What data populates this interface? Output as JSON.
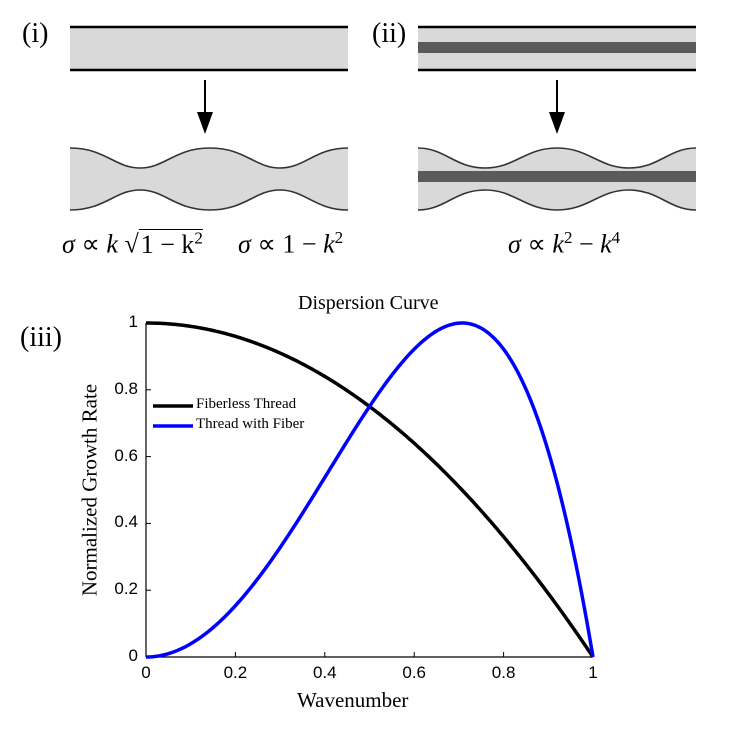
{
  "panels": {
    "i": {
      "label": "(i)"
    },
    "ii": {
      "label": "(ii)"
    },
    "iii": {
      "label": "(iii)"
    }
  },
  "formulas": {
    "fiberless_a": {
      "sigma": "σ",
      "prop": " ∝ ",
      "k": "k",
      "inner": "1 − k",
      "exp": "2"
    },
    "fiberless_b": {
      "sigma": "σ",
      "prop": " ∝ ",
      "one": "1 − ",
      "k": "k",
      "exp": "2"
    },
    "fiber": {
      "sigma": "σ",
      "prop": " ∝ ",
      "k1": "k",
      "exp1": "2",
      "minus": " − ",
      "k2": "k",
      "exp2": "4"
    }
  },
  "colors": {
    "fill": "#d9d9d9",
    "fiber": "#5a5a5a",
    "series_fiberless": "#000000",
    "series_fiber": "#0000ff"
  },
  "chart_data": {
    "type": "line",
    "title": "Dispersion Curve",
    "xlabel": "Wavenumber",
    "ylabel": "Normalized Growth Rate",
    "xlim": [
      0,
      1
    ],
    "ylim": [
      0,
      1
    ],
    "xticks": [
      "0",
      "0.2",
      "0.4",
      "0.6",
      "0.8",
      "1"
    ],
    "yticks": [
      "0",
      "0.2",
      "0.4",
      "0.6",
      "0.8",
      "1"
    ],
    "legend_position": "left",
    "series": [
      {
        "name": "Fiberless Thread",
        "formula": "1 - k^2",
        "x": [
          0,
          0.1,
          0.2,
          0.3,
          0.4,
          0.5,
          0.6,
          0.7,
          0.8,
          0.9,
          1.0
        ],
        "values": [
          1.0,
          0.99,
          0.96,
          0.91,
          0.84,
          0.75,
          0.64,
          0.51,
          0.36,
          0.19,
          0.0
        ]
      },
      {
        "name": "Thread with Fiber",
        "formula": "4(k^2 - k^4)",
        "x": [
          0,
          0.1,
          0.2,
          0.3,
          0.4,
          0.5,
          0.6,
          0.7,
          0.707,
          0.8,
          0.9,
          1.0
        ],
        "values": [
          0.0,
          0.0396,
          0.1536,
          0.3276,
          0.5376,
          0.75,
          0.9216,
          0.9996,
          1.0,
          0.9216,
          0.6156,
          0.0
        ]
      }
    ]
  }
}
